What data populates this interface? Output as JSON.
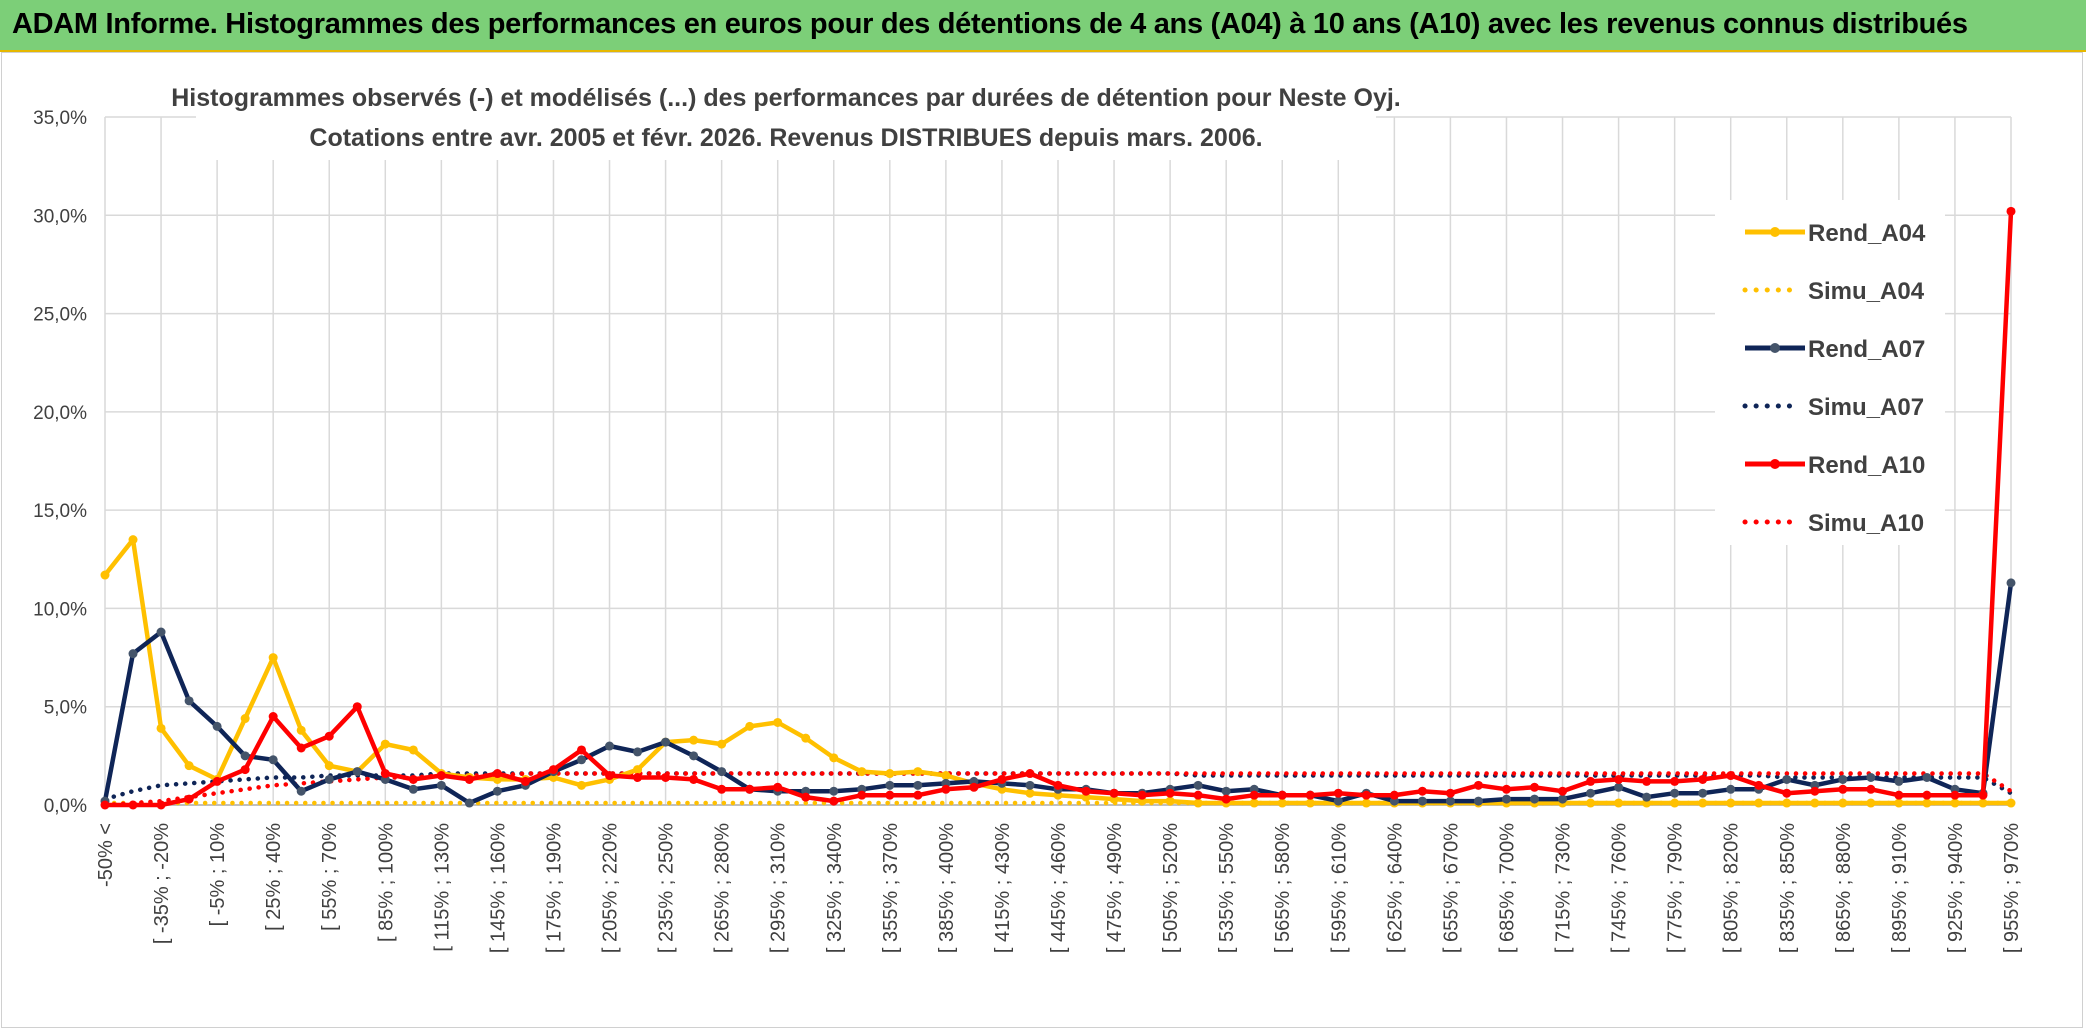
{
  "header": {
    "title": "ADAM Informe. Histogrammes des performances en euros pour des détentions de 4 ans (A04) à 10 ans (A10) avec les revenus connus distribués"
  },
  "chart_data": {
    "type": "line",
    "title": "Histogrammes observés (-) et modélisés (...) des performances par durées de détention pour Neste Oyj.",
    "subtitle": "Cotations entre avr. 2005 et févr. 2026.  Revenus DISTRIBUES depuis mars. 2006.",
    "ylim": [
      0,
      35
    ],
    "yticks": [
      "0,0%",
      "5,0%",
      "10,0%",
      "15,0%",
      "20,0%",
      "25,0%",
      "30,0%",
      "35,0%"
    ],
    "grid": true,
    "legend_position": "right",
    "x_tick_labels": [
      "-50% <",
      "[ -35% ; -20%",
      "[ -5% ; 10%",
      "[ 25% ; 40%",
      "[ 55% ; 70%",
      "[ 85% ; 100%",
      "[ 115% ; 130%",
      "[ 145% ; 160%",
      "[ 175% ; 190%",
      "[ 205% ; 220%",
      "[ 235% ; 250%",
      "[ 265% ; 280%",
      "[ 295% ; 310%",
      "[ 325% ; 340%",
      "[ 355% ; 370%",
      "[ 385% ; 400%",
      "[ 415% ; 430%",
      "[ 445% ; 460%",
      "[ 475% ; 490%",
      "[ 505% ; 520%",
      "[ 535% ; 550%",
      "[ 565% ; 580%",
      "[ 595% ; 610%",
      "[ 625% ; 640%",
      "[ 655% ; 670%",
      "[ 685% ; 700%",
      "[ 715% ; 730%",
      "[ 745% ; 760%",
      "[ 775% ; 790%",
      "[ 805% ; 820%",
      "[ 835% ; 850%",
      "[ 865% ; 880%",
      "[ 895% ; 910%",
      "[ 925% ; 940%",
      "[ 955% ; 970%"
    ],
    "n_points": 69,
    "series": [
      {
        "name": "Rend_A04",
        "color": "#ffc000",
        "style": "solid",
        "values": [
          11.7,
          13.5,
          3.9,
          2.0,
          1.3,
          4.4,
          7.5,
          3.8,
          2.0,
          1.7,
          3.1,
          2.8,
          1.6,
          1.4,
          1.3,
          1.3,
          1.4,
          1.0,
          1.3,
          1.8,
          3.2,
          3.3,
          3.1,
          4.0,
          4.2,
          3.4,
          2.4,
          1.7,
          1.6,
          1.7,
          1.5,
          1.1,
          0.8,
          0.6,
          0.5,
          0.4,
          0.3,
          0.2,
          0.2,
          0.1,
          0.1,
          0.1,
          0.1,
          0.1,
          0.1,
          0.1,
          0.1,
          0.1,
          0.1,
          0.1,
          0.1,
          0.1,
          0.1,
          0.1,
          0.1,
          0.1,
          0.1,
          0.1,
          0.1,
          0.1,
          0.1,
          0.1,
          0.1,
          0.1,
          0.1,
          0.1,
          0.1,
          0.1,
          0.1
        ]
      },
      {
        "name": "Simu_A04",
        "color": "#ffc000",
        "style": "dotted",
        "values": [
          0.1,
          0.1,
          0.1,
          0.1,
          0.1,
          0.1,
          0.1,
          0.1,
          0.1,
          0.1,
          0.1,
          0.1,
          0.1,
          0.1,
          0.1,
          0.1,
          0.1,
          0.1,
          0.1,
          0.1,
          0.1,
          0.1,
          0.1,
          0.1,
          0.1,
          0.1,
          0.1,
          0.1,
          0.1,
          0.1,
          0.1,
          0.1,
          0.1,
          0.1,
          0.1,
          0.1,
          0.1,
          0.1,
          0.1,
          0.1,
          0.1,
          0.1,
          0.1,
          0.1,
          0.1,
          0.1,
          0.1,
          0.1,
          0.1,
          0.1,
          0.1,
          0.1,
          0.1,
          0.1,
          0.1,
          0.1,
          0.1,
          0.1,
          0.1,
          0.1,
          0.1,
          0.1,
          0.1,
          0.1,
          0.1,
          0.1,
          0.1,
          0.1,
          0.1
        ]
      },
      {
        "name": "Rend_A07",
        "color": "#0f2557",
        "style": "solid",
        "values": [
          0.2,
          7.7,
          8.8,
          5.3,
          4.0,
          2.5,
          2.3,
          0.7,
          1.3,
          1.7,
          1.3,
          0.8,
          1.0,
          0.1,
          0.7,
          1.0,
          1.7,
          2.3,
          3.0,
          2.7,
          3.2,
          2.5,
          1.7,
          0.8,
          0.7,
          0.7,
          0.7,
          0.8,
          1.0,
          1.0,
          1.1,
          1.2,
          1.1,
          1.0,
          0.8,
          0.8,
          0.6,
          0.6,
          0.8,
          1.0,
          0.7,
          0.8,
          0.5,
          0.5,
          0.2,
          0.6,
          0.2,
          0.2,
          0.2,
          0.2,
          0.3,
          0.3,
          0.3,
          0.6,
          0.9,
          0.4,
          0.6,
          0.6,
          0.8,
          0.8,
          1.3,
          1.0,
          1.3,
          1.4,
          1.2,
          1.4,
          0.8,
          0.6,
          11.3
        ]
      },
      {
        "name": "Simu_A07",
        "color": "#0f2557",
        "style": "dotted",
        "values": [
          0.3,
          0.7,
          1.0,
          1.1,
          1.2,
          1.3,
          1.4,
          1.4,
          1.5,
          1.5,
          1.5,
          1.5,
          1.6,
          1.6,
          1.6,
          1.6,
          1.6,
          1.6,
          1.6,
          1.6,
          1.6,
          1.6,
          1.6,
          1.6,
          1.6,
          1.6,
          1.6,
          1.6,
          1.6,
          1.6,
          1.6,
          1.6,
          1.6,
          1.6,
          1.6,
          1.6,
          1.6,
          1.6,
          1.6,
          1.5,
          1.5,
          1.5,
          1.5,
          1.5,
          1.5,
          1.5,
          1.5,
          1.5,
          1.5,
          1.5,
          1.5,
          1.5,
          1.5,
          1.5,
          1.5,
          1.5,
          1.5,
          1.5,
          1.5,
          1.5,
          1.4,
          1.4,
          1.4,
          1.4,
          1.4,
          1.4,
          1.4,
          1.4,
          0.6
        ]
      },
      {
        "name": "Rend_A10",
        "color": "#ff0000",
        "style": "solid",
        "values": [
          0.0,
          0.0,
          0.0,
          0.3,
          1.2,
          1.8,
          4.5,
          2.9,
          3.5,
          5.0,
          1.6,
          1.3,
          1.5,
          1.3,
          1.6,
          1.2,
          1.8,
          2.8,
          1.5,
          1.4,
          1.4,
          1.3,
          0.8,
          0.8,
          0.9,
          0.4,
          0.2,
          0.5,
          0.5,
          0.5,
          0.8,
          0.9,
          1.3,
          1.6,
          1.0,
          0.7,
          0.6,
          0.5,
          0.6,
          0.5,
          0.3,
          0.5,
          0.5,
          0.5,
          0.6,
          0.5,
          0.5,
          0.7,
          0.6,
          1.0,
          0.8,
          0.9,
          0.7,
          1.2,
          1.3,
          1.2,
          1.2,
          1.3,
          1.5,
          1.0,
          0.6,
          0.7,
          0.8,
          0.8,
          0.5,
          0.5,
          0.5,
          0.5,
          30.2
        ]
      },
      {
        "name": "Simu_A10",
        "color": "#ff0000",
        "style": "dotted",
        "values": [
          0.0,
          0.1,
          0.2,
          0.4,
          0.6,
          0.8,
          1.0,
          1.1,
          1.2,
          1.3,
          1.4,
          1.4,
          1.5,
          1.5,
          1.5,
          1.6,
          1.6,
          1.6,
          1.6,
          1.6,
          1.6,
          1.6,
          1.6,
          1.6,
          1.6,
          1.6,
          1.6,
          1.6,
          1.6,
          1.6,
          1.6,
          1.6,
          1.6,
          1.6,
          1.6,
          1.6,
          1.6,
          1.6,
          1.6,
          1.6,
          1.6,
          1.6,
          1.6,
          1.6,
          1.6,
          1.6,
          1.6,
          1.6,
          1.6,
          1.6,
          1.6,
          1.6,
          1.6,
          1.6,
          1.6,
          1.6,
          1.6,
          1.6,
          1.6,
          1.6,
          1.6,
          1.6,
          1.6,
          1.6,
          1.6,
          1.6,
          1.6,
          1.6,
          0.7
        ]
      }
    ]
  }
}
